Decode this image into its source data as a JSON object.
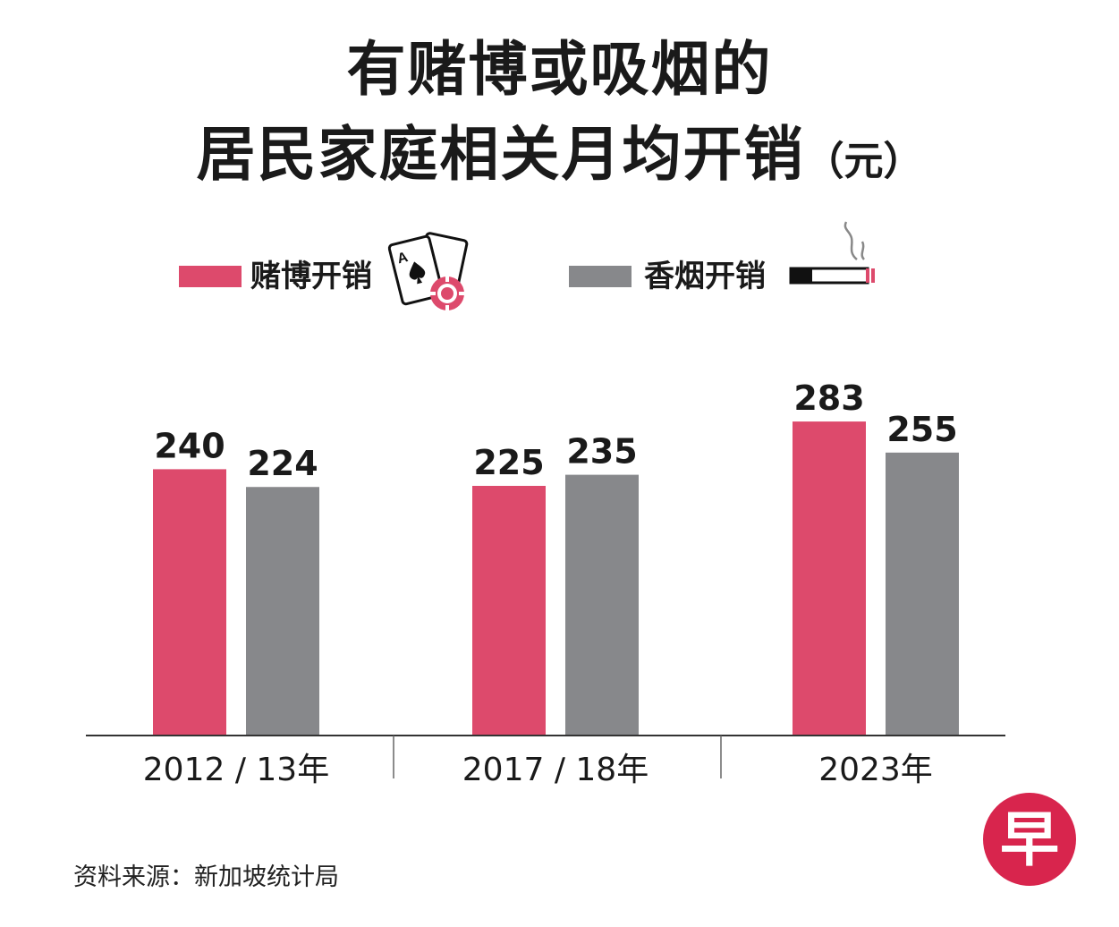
{
  "title": {
    "line1": "有赌博或吸烟的",
    "line2": "居民家庭相关月均开销",
    "unit": "（元）"
  },
  "legend": [
    {
      "label": "赌博开销",
      "color": "#dd4a6c",
      "icon": "playing-cards-chip-icon"
    },
    {
      "label": "香烟开销",
      "color": "#87888b",
      "icon": "cigarette-icon"
    }
  ],
  "chart_data": {
    "type": "bar",
    "title": "有赌博或吸烟的居民家庭相关月均开销（元）",
    "categories": [
      "2012 / 13年",
      "2017 / 18年",
      "2023年"
    ],
    "series": [
      {
        "name": "赌博开销",
        "values": [
          240,
          225,
          283
        ],
        "color": "#dd4a6c"
      },
      {
        "name": "香烟开销",
        "values": [
          224,
          235,
          255
        ],
        "color": "#87888b"
      }
    ],
    "ylim": [
      0,
      300
    ],
    "xlabel": "",
    "ylabel": ""
  },
  "footer": {
    "source": "资料来源：新加坡统计局"
  },
  "logo": {
    "text": "早",
    "color": "#d8254d"
  }
}
